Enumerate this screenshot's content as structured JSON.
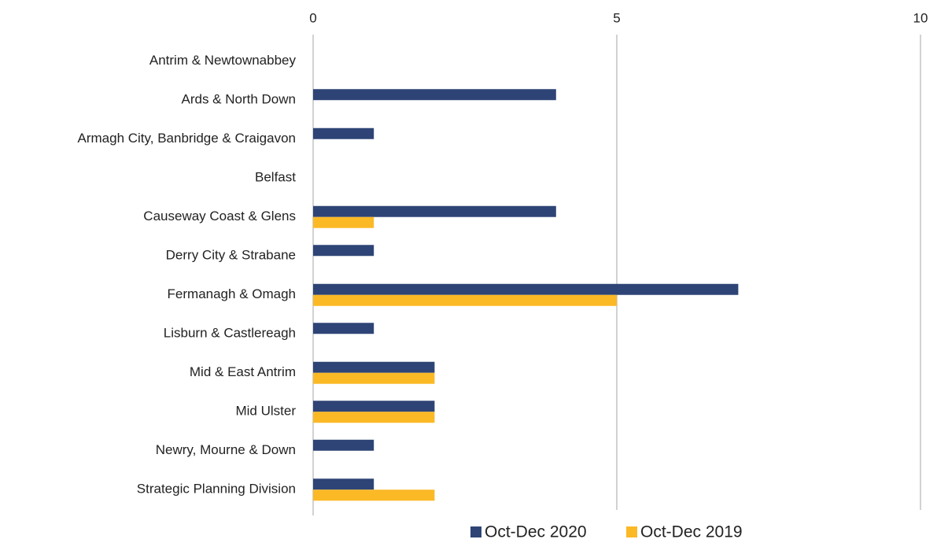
{
  "chart_data": {
    "type": "bar",
    "orientation": "horizontal",
    "categories": [
      "Antrim & Newtownabbey",
      "Ards & North Down",
      "Armagh City, Banbridge & Craigavon",
      "Belfast",
      "Causeway Coast & Glens",
      "Derry City & Strabane",
      "Fermanagh & Omagh",
      "Lisburn & Castlereagh",
      "Mid & East Antrim",
      "Mid Ulster",
      "Newry, Mourne & Down",
      "Strategic Planning Division"
    ],
    "series": [
      {
        "name": "Oct-Dec 2020",
        "color": "#2e4476",
        "values": [
          0,
          4,
          1,
          0,
          4,
          1,
          7,
          1,
          2,
          2,
          1,
          1
        ]
      },
      {
        "name": "Oct-Dec 2019",
        "color": "#fbb926",
        "values": [
          0,
          0,
          0,
          0,
          1,
          0,
          5,
          0,
          2,
          2,
          0,
          2
        ]
      }
    ],
    "xlim": [
      0,
      10
    ],
    "xticks": [
      0,
      5,
      10
    ],
    "grid": true,
    "legend": "bottom"
  }
}
